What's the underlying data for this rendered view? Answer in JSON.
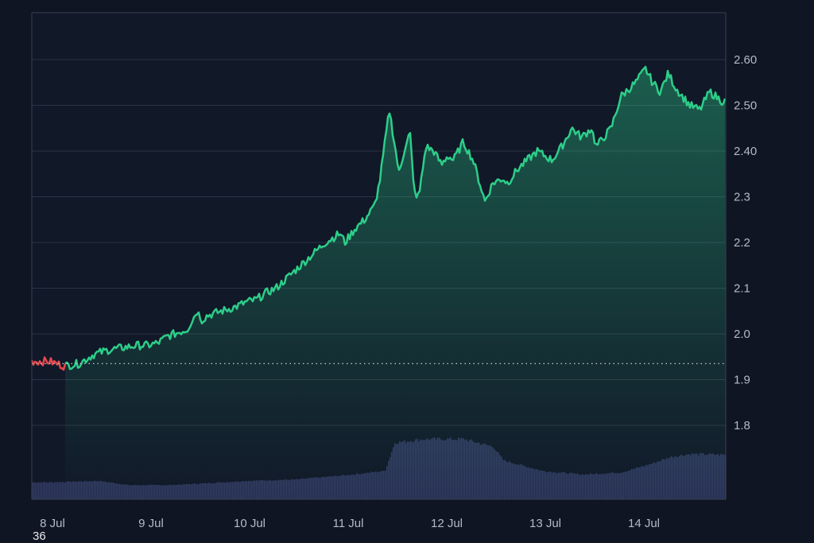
{
  "chart_data": {
    "type": "area",
    "title": "",
    "xlabel": "",
    "ylabel": "",
    "x_tick_labels": [
      "8 Jul",
      "9 Jul",
      "10 Jul",
      "11 Jul",
      "12 Jul",
      "13 Jul",
      "14 Jul"
    ],
    "y_tick_labels": [
      "2.60",
      "2.50",
      "2.40",
      "2.3",
      "2.2",
      "2.1",
      "2.0",
      "1.9",
      "1.8"
    ],
    "y_tick_values": [
      2.6,
      2.5,
      2.4,
      2.3,
      2.2,
      2.1,
      2.0,
      1.9,
      1.8
    ],
    "ylim": [
      1.7,
      2.7
    ],
    "baseline": 1.935,
    "grid": true,
    "price_series": {
      "x_day": [
        0,
        0.15,
        0.3,
        0.45,
        0.6,
        0.75,
        0.9,
        1.0,
        1.1,
        1.2,
        1.4,
        1.5,
        1.55,
        1.6,
        1.75,
        1.9,
        2.0,
        2.1,
        2.2,
        2.3,
        2.45,
        2.55,
        2.65,
        2.8,
        2.95,
        3.0,
        3.1,
        3.2,
        3.3,
        3.35,
        3.45,
        3.55,
        3.62,
        3.66,
        3.7,
        3.75,
        3.82,
        3.9,
        3.98,
        4.04,
        4.1,
        4.2,
        4.3,
        4.42,
        4.5,
        4.6,
        4.65,
        4.75,
        4.85,
        4.95,
        5.1,
        5.2,
        5.3,
        5.4,
        5.5,
        5.55,
        5.7,
        5.8,
        5.85,
        5.95,
        6.05,
        6.12,
        6.2,
        6.28,
        6.35,
        6.42,
        6.5,
        6.6,
        6.7,
        6.82
      ],
      "values": [
        1.94,
        1.93,
        1.935,
        1.955,
        1.965,
        1.97,
        1.975,
        1.975,
        1.98,
        1.995,
        2.01,
        2.05,
        2.03,
        2.04,
        2.05,
        2.06,
        2.07,
        2.075,
        2.09,
        2.1,
        2.13,
        2.15,
        2.17,
        2.2,
        2.22,
        2.2,
        2.23,
        2.25,
        2.28,
        2.33,
        2.49,
        2.35,
        2.42,
        2.44,
        2.31,
        2.3,
        2.41,
        2.4,
        2.37,
        2.39,
        2.38,
        2.42,
        2.38,
        2.29,
        2.33,
        2.34,
        2.33,
        2.36,
        2.38,
        2.4,
        2.38,
        2.41,
        2.45,
        2.43,
        2.45,
        2.41,
        2.45,
        2.52,
        2.53,
        2.55,
        2.58,
        2.55,
        2.53,
        2.57,
        2.54,
        2.52,
        2.5,
        2.49,
        2.53,
        2.51
      ],
      "down_color": "#e5484d",
      "up_color": "#2dce89"
    },
    "volume_series": {
      "x_day": [
        0,
        0.5,
        0.8,
        1.2,
        1.5,
        2.0,
        2.5,
        3.0,
        3.4,
        3.5,
        3.8,
        4.2,
        4.5,
        4.6,
        5.0,
        5.4,
        5.8,
        6.1,
        6.3,
        6.5,
        6.82
      ],
      "relative": [
        0.24,
        0.26,
        0.2,
        0.2,
        0.22,
        0.26,
        0.28,
        0.34,
        0.4,
        0.8,
        0.85,
        0.85,
        0.74,
        0.55,
        0.4,
        0.35,
        0.38,
        0.5,
        0.6,
        0.64,
        0.63
      ],
      "color": "#323b63"
    },
    "corner_text": "36"
  }
}
